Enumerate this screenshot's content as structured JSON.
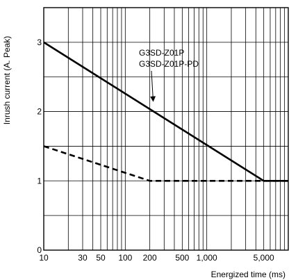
{
  "chart_data": {
    "type": "line",
    "xlabel": "Energized time (ms)",
    "ylabel": "Inrush current (A. Peak)",
    "x_scale": "log",
    "xlim": [
      10,
      10000
    ],
    "ylim": [
      0,
      3.5
    ],
    "grid": true,
    "x_tick_labels": [
      {
        "value": 10,
        "label": "10"
      },
      {
        "value": 30,
        "label": "30"
      },
      {
        "value": 50,
        "label": "50"
      },
      {
        "value": 100,
        "label": "100"
      },
      {
        "value": 200,
        "label": "200"
      },
      {
        "value": 500,
        "label": "500"
      },
      {
        "value": 1000,
        "label": "1,000"
      },
      {
        "value": 5000,
        "label": "5,000"
      }
    ],
    "y_tick_labels": [
      {
        "value": 0,
        "label": "0"
      },
      {
        "value": 1,
        "label": "1"
      },
      {
        "value": 2,
        "label": "2"
      },
      {
        "value": 3,
        "label": "3"
      }
    ],
    "y_grid_values": [
      0.5,
      1,
      1.5,
      2,
      2.5,
      3
    ],
    "series": [
      {
        "style": "solid",
        "color": "#000000",
        "x": [
          10,
          5000,
          10000
        ],
        "y": [
          3,
          1,
          1
        ]
      },
      {
        "style": "dashed",
        "color": "#000000",
        "x": [
          10,
          200,
          10000
        ],
        "y": [
          1.5,
          1,
          1
        ]
      }
    ],
    "annotations": [
      {
        "lines": [
          "G3SD-Z01P",
          "G3SD-Z01P-PD"
        ],
        "arrow_to": {
          "x": 220,
          "y": 2.15
        }
      }
    ]
  }
}
